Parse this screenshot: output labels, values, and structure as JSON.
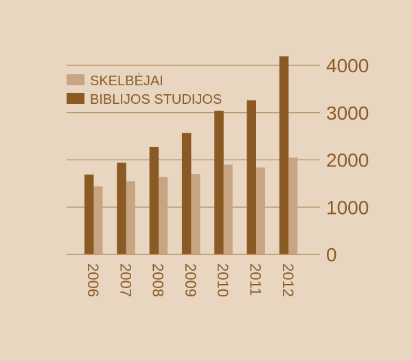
{
  "chart_data": {
    "type": "bar",
    "categories": [
      "2006",
      "2007",
      "2008",
      "2009",
      "2010",
      "2011",
      "2012"
    ],
    "series": [
      {
        "name": "BIBLIJOS STUDIJOS",
        "color": "#8b5a24",
        "values": [
          1690,
          1940,
          2270,
          2570,
          3040,
          3260,
          4190
        ]
      },
      {
        "name": "SKELBĖJAI",
        "color": "#c8a582",
        "values": [
          1440,
          1550,
          1640,
          1700,
          1900,
          1840,
          2050
        ]
      }
    ],
    "legend_order": [
      1,
      0
    ],
    "yticks": [
      0,
      1000,
      2000,
      3000,
      4000
    ],
    "ylim": [
      0,
      4000
    ],
    "y_axis_side": "right",
    "grid": true,
    "legend_placement": "top-left",
    "background": "#e8d6c1",
    "grid_color": "#b58d5e",
    "text_color": "#8b5a24"
  }
}
